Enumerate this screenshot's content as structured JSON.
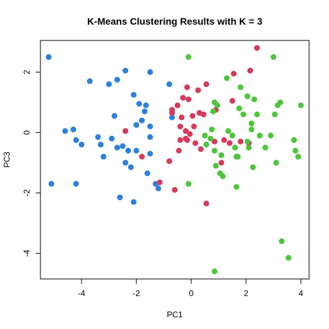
{
  "chart_data": {
    "type": "scatter",
    "title": "K-Means Clustering Results with K = 3",
    "xlabel": "PC1",
    "ylabel": "PC3",
    "xlim": [
      -5.5,
      4.3
    ],
    "ylim": [
      -4.85,
      3.05
    ],
    "xticks": [
      -4,
      -2,
      0,
      2,
      4
    ],
    "yticks": [
      -4,
      -2,
      0,
      2
    ],
    "grid": false,
    "legend": "none",
    "series": [
      {
        "color": "#2F80DD",
        "points": [
          [
            -5.2,
            2.5
          ],
          [
            -5.1,
            -1.7
          ],
          [
            -4.6,
            0.05
          ],
          [
            -4.3,
            0.1
          ],
          [
            -4.2,
            -0.25
          ],
          [
            -4.2,
            -1.7
          ],
          [
            -4.0,
            -0.4
          ],
          [
            -3.7,
            1.7
          ],
          [
            -3.4,
            -0.15
          ],
          [
            -3.3,
            -0.4
          ],
          [
            -3.2,
            -0.8
          ],
          [
            -3.0,
            1.6
          ],
          [
            -2.9,
            -0.2
          ],
          [
            -2.8,
            0.55
          ],
          [
            -2.7,
            1.75
          ],
          [
            -2.7,
            -0.5
          ],
          [
            -2.6,
            -2.15
          ],
          [
            -2.5,
            -0.45
          ],
          [
            -2.4,
            2.05
          ],
          [
            -2.4,
            -1.0
          ],
          [
            -2.3,
            -0.6
          ],
          [
            -2.2,
            -1.15
          ],
          [
            -2.1,
            -2.3
          ],
          [
            -2.1,
            1.25
          ],
          [
            -2.0,
            0.25
          ],
          [
            -2.0,
            -0.6
          ],
          [
            -1.9,
            0.95
          ],
          [
            -1.8,
            0.4
          ],
          [
            -1.7,
            0.7
          ],
          [
            -1.65,
            0.9
          ],
          [
            -1.6,
            -1.35
          ],
          [
            -1.5,
            2.0
          ],
          [
            -1.5,
            0.2
          ],
          [
            -1.5,
            -0.15
          ],
          [
            -1.5,
            -0.7
          ],
          [
            -1.2,
            -1.85
          ],
          [
            -0.8,
            1.6
          ],
          [
            -0.7,
            0.5
          ],
          [
            -1.3,
            -1.7
          ]
        ]
      },
      {
        "color": "#D63B5C",
        "points": [
          [
            -2.4,
            0.05
          ],
          [
            -1.8,
            -0.8
          ],
          [
            -1.15,
            -1.65
          ],
          [
            -0.8,
            -0.95
          ],
          [
            -0.7,
            0.65
          ],
          [
            -0.7,
            0.75
          ],
          [
            -0.6,
            -1.9
          ],
          [
            -0.5,
            0.9
          ],
          [
            -0.45,
            -0.6
          ],
          [
            -0.4,
            -0.25
          ],
          [
            -0.4,
            0.2
          ],
          [
            -0.35,
            0.5
          ],
          [
            -0.3,
            1.15
          ],
          [
            -0.2,
            -0.2
          ],
          [
            -0.2,
            0.05
          ],
          [
            -0.15,
            -0.25
          ],
          [
            -0.15,
            1.5
          ],
          [
            -0.1,
            1.1
          ],
          [
            -0.05,
            -0.05
          ],
          [
            0.05,
            0.55
          ],
          [
            0.1,
            0.2
          ],
          [
            0.15,
            -0.35
          ],
          [
            0.25,
            1.4
          ],
          [
            0.3,
            0.65
          ],
          [
            0.35,
            -0.55
          ],
          [
            0.45,
            0.6
          ],
          [
            0.55,
            1.6
          ],
          [
            0.55,
            -2.35
          ],
          [
            0.85,
            -0.3
          ],
          [
            0.9,
            0.75
          ],
          [
            1.1,
            -1.0
          ],
          [
            1.2,
            -0.25
          ],
          [
            1.4,
            -0.35
          ],
          [
            1.5,
            1.05
          ],
          [
            1.6,
            -0.5
          ],
          [
            1.55,
            1.95
          ],
          [
            1.8,
            -0.3
          ],
          [
            2.15,
            2.05
          ],
          [
            2.4,
            2.8
          ],
          [
            2.1,
            -0.35
          ]
        ]
      },
      {
        "color": "#4EC53C",
        "points": [
          [
            -0.1,
            2.5
          ],
          [
            -0.1,
            -1.7
          ],
          [
            0.5,
            -0.1
          ],
          [
            0.55,
            -0.4
          ],
          [
            0.7,
            -0.2
          ],
          [
            0.75,
            0.1
          ],
          [
            0.8,
            0.7
          ],
          [
            0.85,
            -0.6
          ],
          [
            0.85,
            1.0
          ],
          [
            0.9,
            -1.1
          ],
          [
            0.95,
            0.9
          ],
          [
            1.05,
            -1.35
          ],
          [
            1.1,
            -0.75
          ],
          [
            1.15,
            -1.45
          ],
          [
            1.3,
            1.8
          ],
          [
            1.35,
            0.05
          ],
          [
            1.5,
            -0.1
          ],
          [
            1.6,
            -0.5
          ],
          [
            1.7,
            -0.8
          ],
          [
            1.75,
            0.8
          ],
          [
            1.8,
            1.5
          ],
          [
            1.9,
            0.6
          ],
          [
            2.05,
            1.2
          ],
          [
            2.05,
            -0.3
          ],
          [
            2.1,
            -0.5
          ],
          [
            2.2,
            0.3
          ],
          [
            2.2,
            0.1
          ],
          [
            2.3,
            1.1
          ],
          [
            2.4,
            0.6
          ],
          [
            2.5,
            -0.1
          ],
          [
            2.7,
            -0.5
          ],
          [
            2.9,
            -0.1
          ],
          [
            3.0,
            2.5
          ],
          [
            3.05,
            0.6
          ],
          [
            3.1,
            -1.0
          ],
          [
            3.15,
            0.9
          ],
          [
            3.25,
            1.0
          ],
          [
            3.3,
            -3.6
          ],
          [
            3.55,
            -4.15
          ],
          [
            3.75,
            -0.25
          ],
          [
            3.8,
            -0.6
          ],
          [
            3.9,
            -0.8
          ],
          [
            4.0,
            0.9
          ],
          [
            0.85,
            -4.6
          ],
          [
            1.65,
            -0.8
          ],
          [
            2.25,
            -1.15
          ],
          [
            1.65,
            -1.8
          ]
        ]
      }
    ]
  }
}
